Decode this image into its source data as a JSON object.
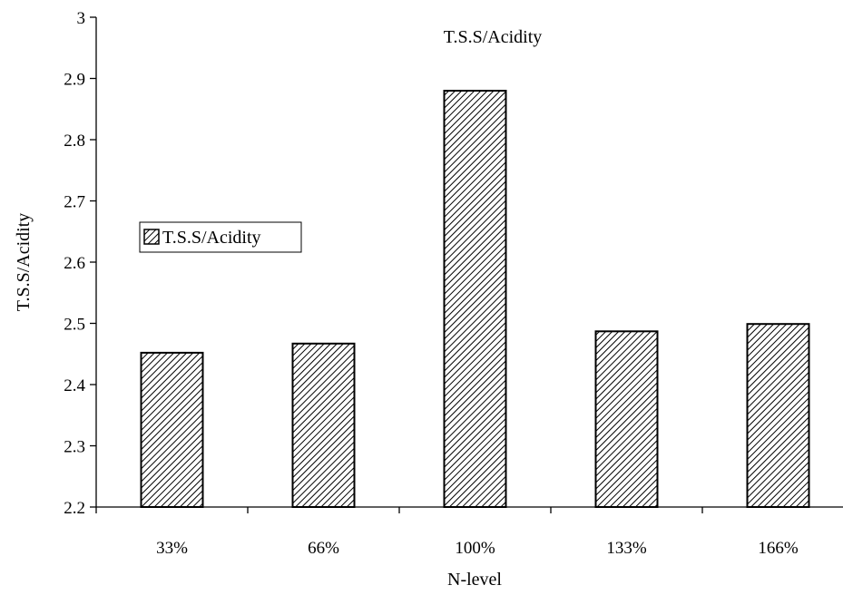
{
  "chart_data": {
    "type": "bar",
    "categories": [
      "33%",
      "66%",
      "100%",
      "133%",
      "166%"
    ],
    "series": [
      {
        "name": "T.S.S/Acidity",
        "values": [
          2.452,
          2.467,
          2.88,
          2.487,
          2.499
        ]
      }
    ],
    "xlabel": "N-level",
    "ylabel": "T.S.S/Acidity",
    "ylim": [
      2.2,
      3.0
    ],
    "yticks": [
      "2.2",
      "2.3",
      "2.4",
      "2.5",
      "2.6",
      "2.7",
      "2.8",
      "2.9",
      "3"
    ],
    "annotation": "T.S.S/Acidity",
    "legend": {
      "entries": [
        "T.S.S/Acidity"
      ],
      "placement": "left"
    },
    "grid": false,
    "bar_pattern": "diagonal-hatch",
    "colors": {
      "bar_fill": "#ffffff",
      "hatch": "#000000",
      "axis": "#000000"
    }
  }
}
